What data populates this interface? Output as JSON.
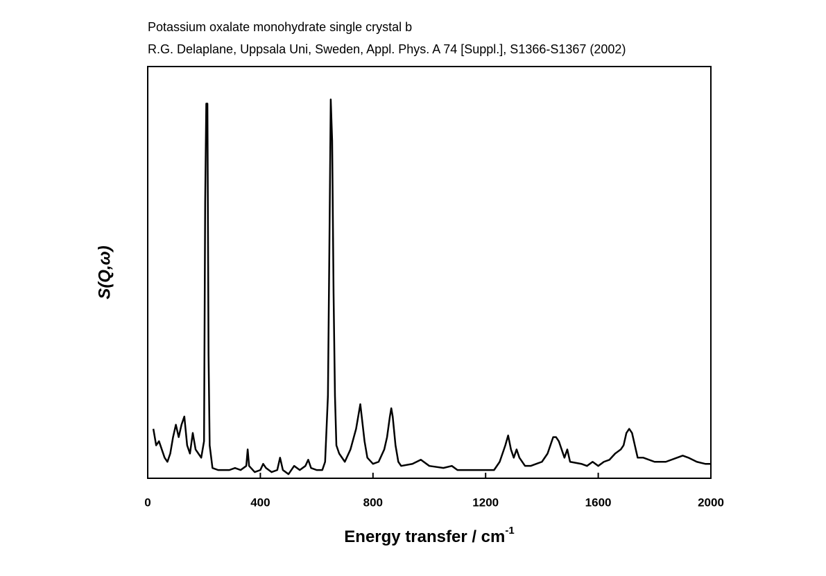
{
  "chart_data": {
    "type": "line",
    "title": "Potassium oxalate monohydrate single crystal b",
    "subtitle": "R.G. Delaplane, Uppsala Uni, Sweden, Appl. Phys. A 74 [Suppl.], S1366-S1367 (2002)",
    "x_label": "Energy transfer / cm",
    "x_label_superscript": "-1",
    "y_label": "S(Q,ω)",
    "xlim": [
      0,
      2000
    ],
    "xticks": [
      0,
      400,
      800,
      1200,
      1600,
      2000
    ],
    "ylim": [
      0,
      100
    ],
    "series": [
      {
        "color": "#000000",
        "x": [
          20,
          30,
          40,
          50,
          60,
          70,
          80,
          90,
          100,
          110,
          120,
          130,
          140,
          150,
          160,
          170,
          180,
          190,
          200,
          204,
          208,
          212,
          216,
          220,
          230,
          250,
          270,
          290,
          310,
          330,
          350,
          355,
          360,
          380,
          400,
          410,
          420,
          440,
          460,
          470,
          480,
          500,
          520,
          540,
          560,
          570,
          580,
          600,
          620,
          630,
          640,
          645,
          650,
          655,
          660,
          665,
          670,
          680,
          700,
          720,
          740,
          750,
          755,
          760,
          770,
          780,
          800,
          820,
          840,
          850,
          860,
          865,
          870,
          880,
          890,
          900,
          940,
          970,
          1000,
          1050,
          1080,
          1100,
          1150,
          1200,
          1230,
          1250,
          1270,
          1280,
          1290,
          1300,
          1310,
          1320,
          1340,
          1360,
          1380,
          1400,
          1420,
          1440,
          1450,
          1460,
          1470,
          1480,
          1490,
          1500,
          1540,
          1560,
          1580,
          1600,
          1620,
          1640,
          1660,
          1680,
          1690,
          1700,
          1710,
          1720,
          1730,
          1740,
          1760,
          1800,
          1840,
          1880,
          1900,
          1920,
          1950,
          1980,
          2000
        ],
        "values": [
          12,
          8,
          9,
          7,
          5,
          4,
          6,
          10,
          13,
          10,
          13,
          15,
          8,
          6,
          11,
          7,
          6,
          5,
          9,
          67,
          91,
          91,
          30,
          8,
          2.5,
          2,
          2,
          2,
          2.5,
          2,
          3,
          7,
          3,
          1.5,
          2,
          3.5,
          2.5,
          1.5,
          2,
          5,
          2,
          1,
          3,
          2,
          3,
          4.5,
          2.5,
          2,
          2,
          4,
          20,
          55,
          92,
          82,
          45,
          20,
          8,
          6,
          4,
          7,
          12,
          16,
          18,
          15,
          9,
          5,
          3.5,
          4,
          7,
          10,
          15,
          17,
          15,
          8,
          4,
          3,
          3.5,
          4.5,
          3,
          2.5,
          3,
          2,
          2,
          2,
          2,
          4,
          8,
          10.4,
          7,
          5,
          7,
          5,
          3,
          3,
          3.5,
          4,
          6,
          10,
          10,
          9,
          7,
          5,
          7,
          4,
          3.5,
          3,
          4,
          3,
          4,
          4.5,
          6,
          7,
          8,
          11,
          12,
          11,
          8,
          5,
          5,
          4,
          4,
          5,
          5.5,
          5,
          4,
          3.5,
          3.5
        ]
      }
    ]
  }
}
